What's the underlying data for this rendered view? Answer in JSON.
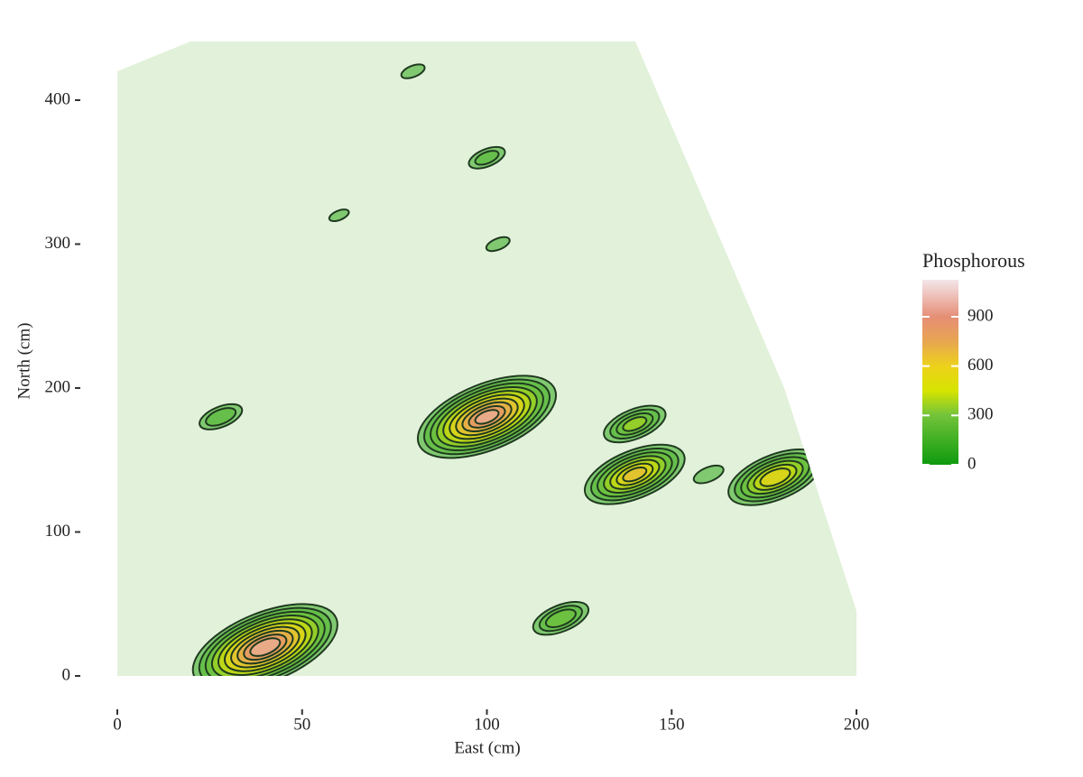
{
  "chart_data": {
    "type": "contour",
    "xlabel": "East (cm)",
    "ylabel": "North (cm)",
    "xlim": [
      0,
      200
    ],
    "ylim": [
      0,
      440
    ],
    "xticks": [
      0,
      50,
      100,
      150,
      200
    ],
    "yticks": [
      0,
      100,
      200,
      300,
      400
    ],
    "legend_title": "Phosphorous",
    "clim": [
      0,
      1125
    ],
    "cticks": [
      0,
      300,
      600,
      900
    ],
    "level_step": 100,
    "contour_color": "#1f3a1f",
    "hotspots": [
      {
        "x": 40,
        "y": 20,
        "value": 1100
      },
      {
        "x": 100,
        "y": 180,
        "value": 1050
      },
      {
        "x": 140,
        "y": 140,
        "value": 750
      },
      {
        "x": 178,
        "y": 138,
        "value": 700
      },
      {
        "x": 140,
        "y": 175,
        "value": 450
      },
      {
        "x": 120,
        "y": 40,
        "value": 400
      },
      {
        "x": 28,
        "y": 180,
        "value": 300
      },
      {
        "x": 100,
        "y": 360,
        "value": 250
      },
      {
        "x": 160,
        "y": 140,
        "value": 200
      },
      {
        "x": 103,
        "y": 300,
        "value": 150
      },
      {
        "x": 80,
        "y": 420,
        "value": 150
      },
      {
        "x": 60,
        "y": 320,
        "value": 120
      }
    ]
  }
}
